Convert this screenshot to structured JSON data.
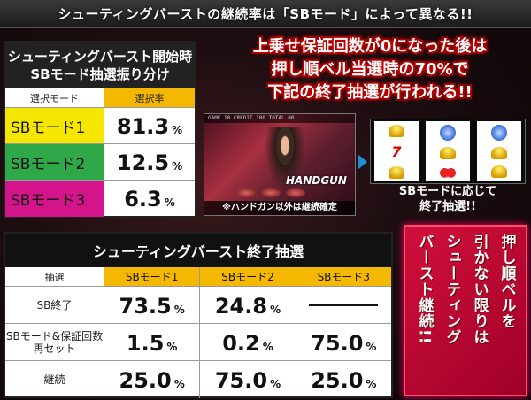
{
  "banner": {
    "text": "シューティングバーストの継続率は「SBモード」によって異なる!!"
  },
  "table1": {
    "title_line1": "シューティングバースト開始時",
    "title_line2": "SBモード抽選振り分け",
    "col_mode": "選択モード",
    "col_rate": "選択率",
    "rows": [
      {
        "mode": "SBモード1",
        "value": "81.3",
        "unit": "%",
        "color": "#f5e600"
      },
      {
        "mode": "SBモード2",
        "value": "12.5",
        "unit": "%",
        "color": "#2fa84a"
      },
      {
        "mode": "SBモード3",
        "value": "6.3",
        "unit": "%",
        "color": "#d4148a"
      }
    ]
  },
  "headline": {
    "line1": "上乗せ保証回数が0になった後は",
    "line2": "押し順ベル当選時の70%で",
    "line3": "下記の終了抽選が行われる!!"
  },
  "screenshot": {
    "hud": "GAME 10   CREDIT 100   TOTAL 00",
    "logo": "HANDGUN",
    "note": "※ハンドガン以外は継続確定"
  },
  "reel_caption": {
    "line1": "SBモードに応じて",
    "line2": "終了抽選!!"
  },
  "table2": {
    "title": "シューティングバースト終了抽選",
    "col_label": "抽選",
    "columns": [
      "SBモード1",
      "SBモード2",
      "SBモード3"
    ],
    "rows": [
      {
        "label": "SB終了",
        "values": [
          "73.5",
          "24.8",
          null
        ]
      },
      {
        "label_line1": "SBモード&保証回数",
        "label_line2": "再セット",
        "values": [
          "1.5",
          "0.2",
          "75.0"
        ]
      },
      {
        "label": "継続",
        "values": [
          "25.0",
          "75.0",
          "25.0"
        ]
      }
    ],
    "unit": "%"
  },
  "redbox": {
    "col1": "押し順ベルを",
    "col2": "引かない限りは",
    "col3": "シューティング",
    "col4": "バースト継続!!"
  },
  "colors": {
    "accent_gold": "#f5b800",
    "accent_red": "#d0103a",
    "arrow_blue": "#1f8fd6"
  }
}
